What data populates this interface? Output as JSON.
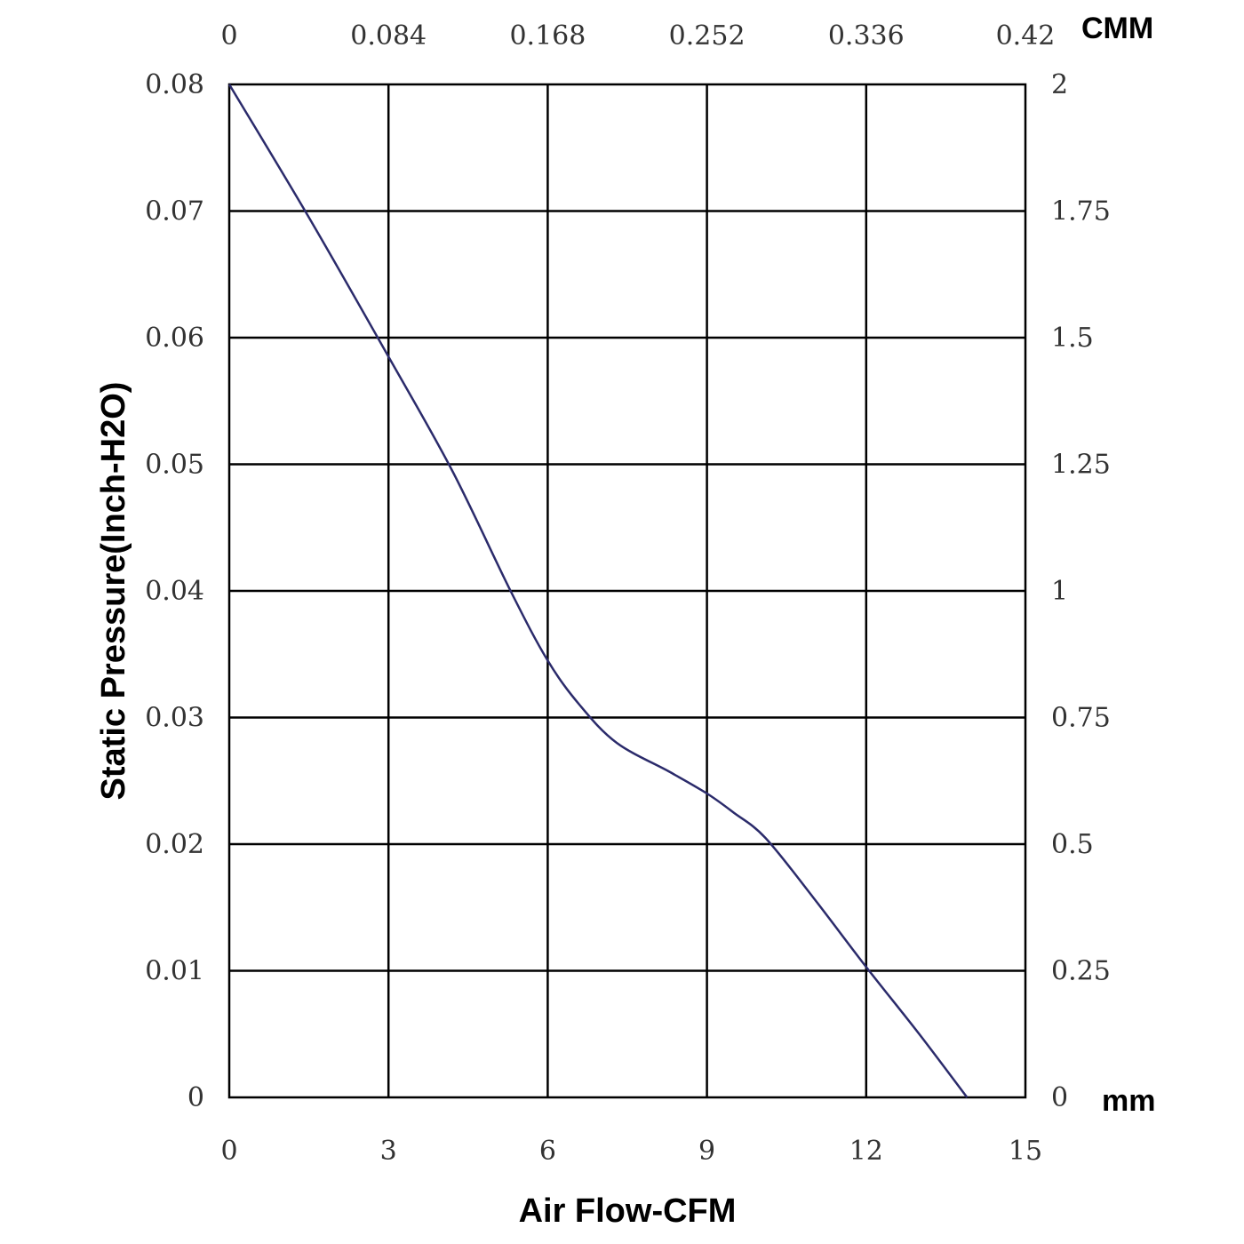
{
  "chart_data": {
    "type": "line",
    "xlabel": "Air Flow-CFM",
    "ylabel": "Static Pressure(Inch-H2O)",
    "xlim": [
      0,
      15
    ],
    "ylim": [
      0,
      0.08
    ],
    "x_ticks": [
      "0",
      "3",
      "6",
      "9",
      "12",
      "15"
    ],
    "y_ticks": [
      "0",
      "0.01",
      "0.02",
      "0.03",
      "0.04",
      "0.05",
      "0.06",
      "0.07",
      "0.08"
    ],
    "top_axis": {
      "unit": "CMM",
      "ticks": [
        "0",
        "0.084",
        "0.168",
        "0.252",
        "0.336",
        "0.42"
      ]
    },
    "right_axis": {
      "unit": "mm",
      "ticks": [
        "0",
        "0.25",
        "0.5",
        "0.75",
        "1",
        "1.25",
        "1.5",
        "1.75",
        "2"
      ]
    },
    "grid": true,
    "line_color": "#2b2b6b",
    "series": [
      {
        "x": [
          0,
          1.5,
          3,
          4.2,
          5.3,
          6,
          6.6,
          7.3,
          8.3,
          9,
          9.5,
          10.1,
          11,
          12,
          13,
          13.9
        ],
        "y": [
          0.08,
          0.0695,
          0.0585,
          0.0495,
          0.04,
          0.0345,
          0.031,
          0.028,
          0.0257,
          0.024,
          0.0225,
          0.0205,
          0.0158,
          0.0103,
          0.005,
          0
        ]
      }
    ]
  }
}
